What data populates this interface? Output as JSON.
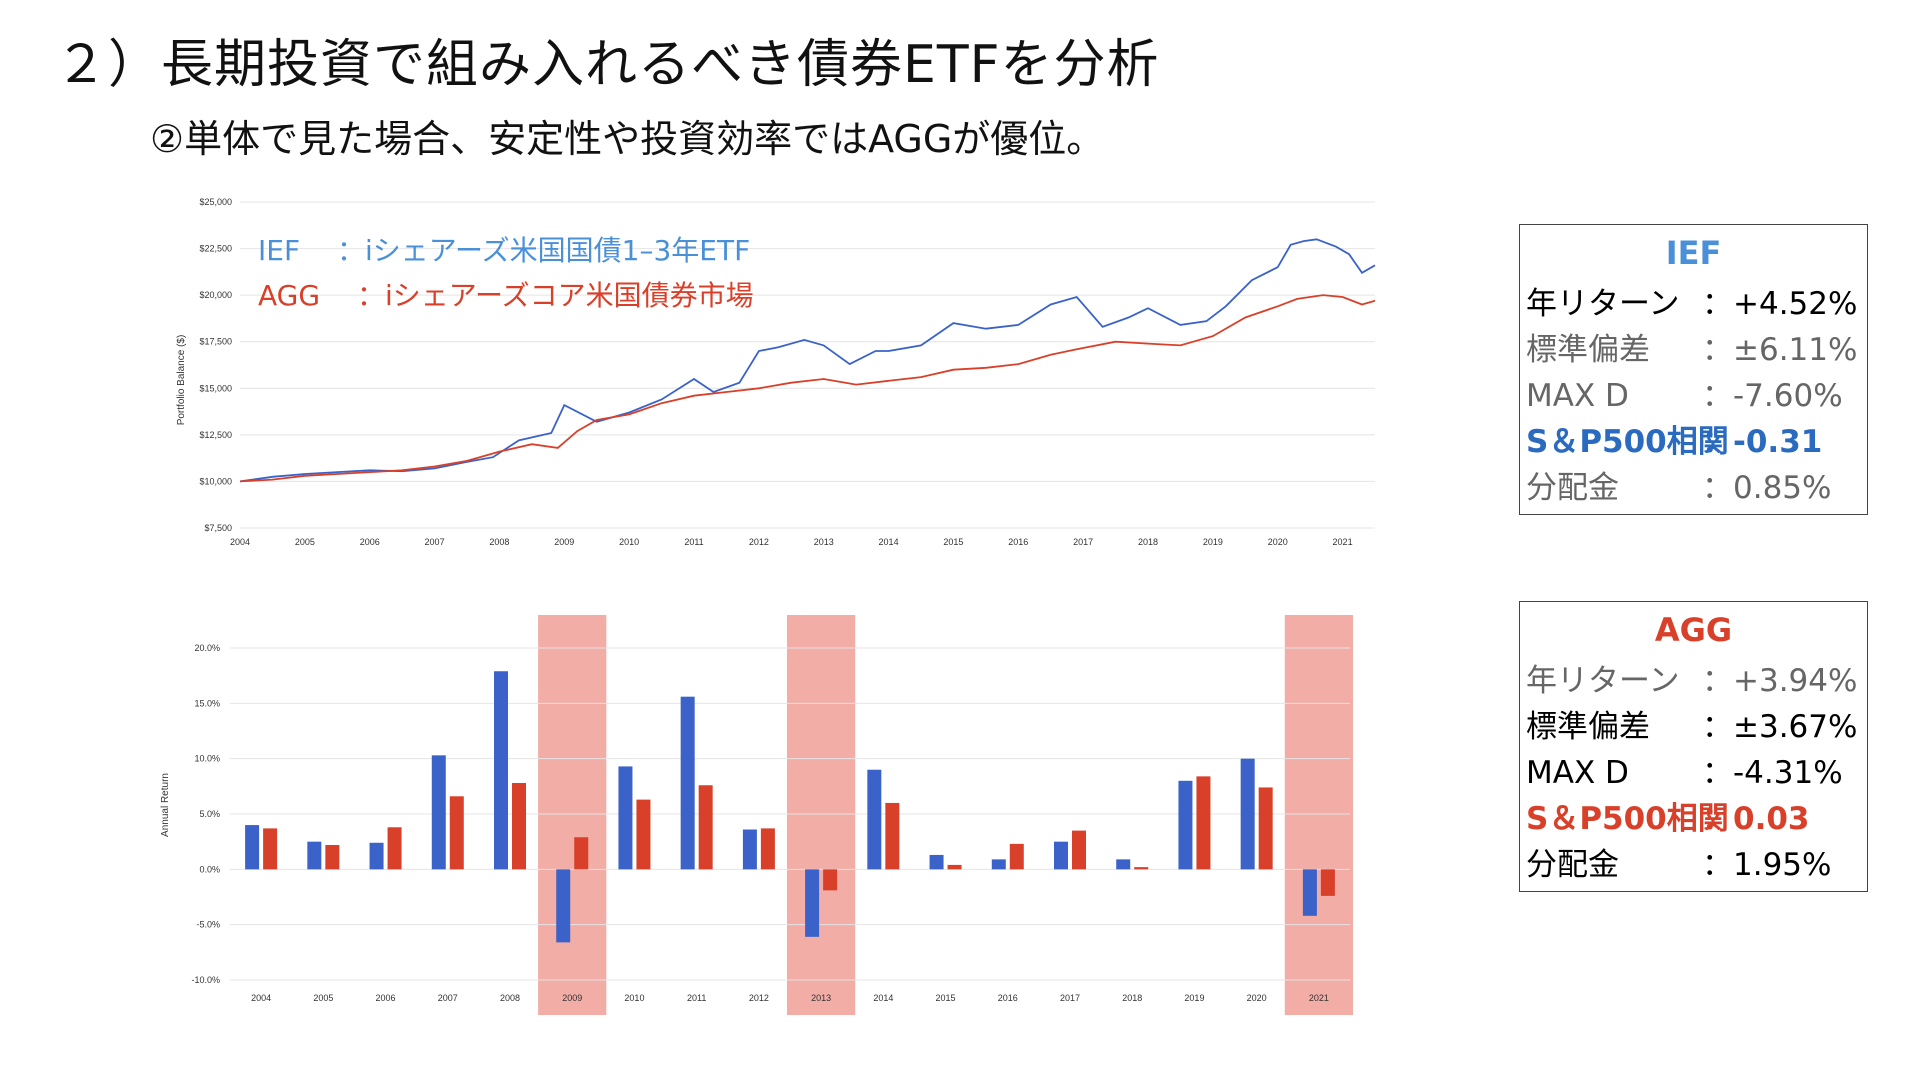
{
  "slide": {
    "title": "２）長期投資で組み入れるべき債券ETFを分析",
    "subtitle": "②単体で見た場合、安定性や投資効率ではAGGが優位。"
  },
  "colors": {
    "ief": "#3a62c9",
    "agg": "#d9402a",
    "ief_label": "#4a90d9",
    "highlight": "#e9776a"
  },
  "chart_data": [
    {
      "type": "line",
      "title": "",
      "ylabel": "Portfolio Balance ($)",
      "xlabel": "",
      "ylim": [
        7500,
        25000
      ],
      "yticks": [
        7500,
        10000,
        12500,
        15000,
        17500,
        20000,
        22500,
        25000
      ],
      "ytick_labels": [
        "$7,500",
        "$10,000",
        "$12,500",
        "$15,000",
        "$17,500",
        "$20,000",
        "$22,500",
        "$25,000"
      ],
      "xticks": [
        "2004",
        "2005",
        "2006",
        "2007",
        "2008",
        "2009",
        "2010",
        "2011",
        "2012",
        "2013",
        "2014",
        "2015",
        "2016",
        "2017",
        "2018",
        "2019",
        "2020",
        "2021"
      ],
      "grid": true,
      "legend_position": "top-left",
      "series": [
        {
          "name": "IEF　 ：iシェアーズ米国国債1–3年ETF",
          "color": "#3a62c9",
          "x": [
            2004.0,
            2004.5,
            2005.0,
            2005.5,
            2006.0,
            2006.5,
            2007.0,
            2007.5,
            2007.9,
            2008.3,
            2008.8,
            2009.0,
            2009.5,
            2010.0,
            2010.5,
            2011.0,
            2011.3,
            2011.7,
            2012.0,
            2012.3,
            2012.7,
            2013.0,
            2013.4,
            2013.8,
            2014.0,
            2014.5,
            2015.0,
            2015.5,
            2016.0,
            2016.5,
            2016.9,
            2017.3,
            2017.7,
            2018.0,
            2018.5,
            2018.9,
            2019.2,
            2019.6,
            2020.0,
            2020.2,
            2020.4,
            2020.6,
            2020.9,
            2021.1,
            2021.3,
            2021.5
          ],
          "y": [
            10000,
            10250,
            10400,
            10500,
            10600,
            10550,
            10700,
            11050,
            11300,
            12200,
            12600,
            14100,
            13200,
            13700,
            14400,
            15500,
            14800,
            15300,
            17000,
            17200,
            17600,
            17300,
            16300,
            17000,
            17000,
            17300,
            18500,
            18200,
            18400,
            19500,
            19900,
            18300,
            18800,
            19300,
            18400,
            18600,
            19400,
            20800,
            21500,
            22700,
            22900,
            23000,
            22600,
            22200,
            21200,
            21600
          ]
        },
        {
          "name": "AGG 　：iシェアーズコア米国債券市場",
          "color": "#d9402a",
          "x": [
            2004.0,
            2004.5,
            2005.0,
            2005.5,
            2006.0,
            2006.5,
            2007.0,
            2007.5,
            2008.0,
            2008.5,
            2008.9,
            2009.2,
            2009.5,
            2010.0,
            2010.5,
            2011.0,
            2011.5,
            2012.0,
            2012.5,
            2013.0,
            2013.5,
            2014.0,
            2014.5,
            2015.0,
            2015.5,
            2016.0,
            2016.5,
            2016.9,
            2017.5,
            2018.0,
            2018.5,
            2019.0,
            2019.5,
            2020.0,
            2020.3,
            2020.7,
            2021.0,
            2021.3,
            2021.5
          ],
          "y": [
            10000,
            10100,
            10300,
            10400,
            10500,
            10600,
            10800,
            11100,
            11600,
            12000,
            11800,
            12700,
            13300,
            13600,
            14200,
            14600,
            14800,
            15000,
            15300,
            15500,
            15200,
            15400,
            15600,
            16000,
            16100,
            16300,
            16800,
            17100,
            17500,
            17400,
            17300,
            17800,
            18800,
            19400,
            19800,
            20000,
            19900,
            19500,
            19700
          ]
        }
      ]
    },
    {
      "type": "bar",
      "title": "",
      "ylabel": "Annual Return",
      "xlabel": "",
      "ylim": [
        -10,
        20
      ],
      "yticks": [
        -10,
        -5,
        0,
        5,
        10,
        15,
        20
      ],
      "ytick_labels": [
        "-10.0%",
        "-5.0%",
        "0.0%",
        "5.0%",
        "10.0%",
        "15.0%",
        "20.0%"
      ],
      "categories": [
        "2004",
        "2005",
        "2006",
        "2007",
        "2008",
        "2009",
        "2010",
        "2011",
        "2012",
        "2013",
        "2014",
        "2015",
        "2016",
        "2017",
        "2018",
        "2019",
        "2020",
        "2021"
      ],
      "highlighted_categories": [
        "2009",
        "2013",
        "2021"
      ],
      "grid": true,
      "series": [
        {
          "name": "IEF",
          "color": "#3a62c9",
          "values": [
            4.0,
            2.5,
            2.4,
            10.3,
            17.9,
            -6.6,
            9.3,
            15.6,
            3.6,
            -6.1,
            9.0,
            1.3,
            0.9,
            2.5,
            0.9,
            8.0,
            10.0,
            -4.2
          ]
        },
        {
          "name": "AGG",
          "color": "#d9402a",
          "values": [
            3.7,
            2.2,
            3.8,
            6.6,
            7.8,
            2.9,
            6.3,
            7.6,
            3.7,
            -1.9,
            6.0,
            0.4,
            2.3,
            3.5,
            0.2,
            8.4,
            7.4,
            -2.4
          ]
        }
      ]
    }
  ],
  "stats": {
    "ief": {
      "header": "IEF",
      "rows": [
        {
          "label": "年リターン",
          "value": "：+4.52%",
          "style": "strong"
        },
        {
          "label": "標準偏差",
          "value": "：±6.11%",
          "style": "muted"
        },
        {
          "label": "MAX D",
          "value": "：-7.60%",
          "style": "muted"
        },
        {
          "label": "S＆P500相関",
          "value": "：-0.31",
          "style": "accent"
        },
        {
          "label": "分配金",
          "value": "：0.85%",
          "style": "muted"
        }
      ]
    },
    "agg": {
      "header": "AGG",
      "rows": [
        {
          "label": "年リターン",
          "value": "：+3.94%",
          "style": "muted"
        },
        {
          "label": "標準偏差",
          "value": "：±3.67%",
          "style": "strong"
        },
        {
          "label": "MAX D",
          "value": "：-4.31%",
          "style": "strong"
        },
        {
          "label": "S＆P500相関",
          "value": "：0.03",
          "style": "accent"
        },
        {
          "label": "分配金",
          "value": "：1.95%",
          "style": "strong"
        }
      ]
    }
  }
}
